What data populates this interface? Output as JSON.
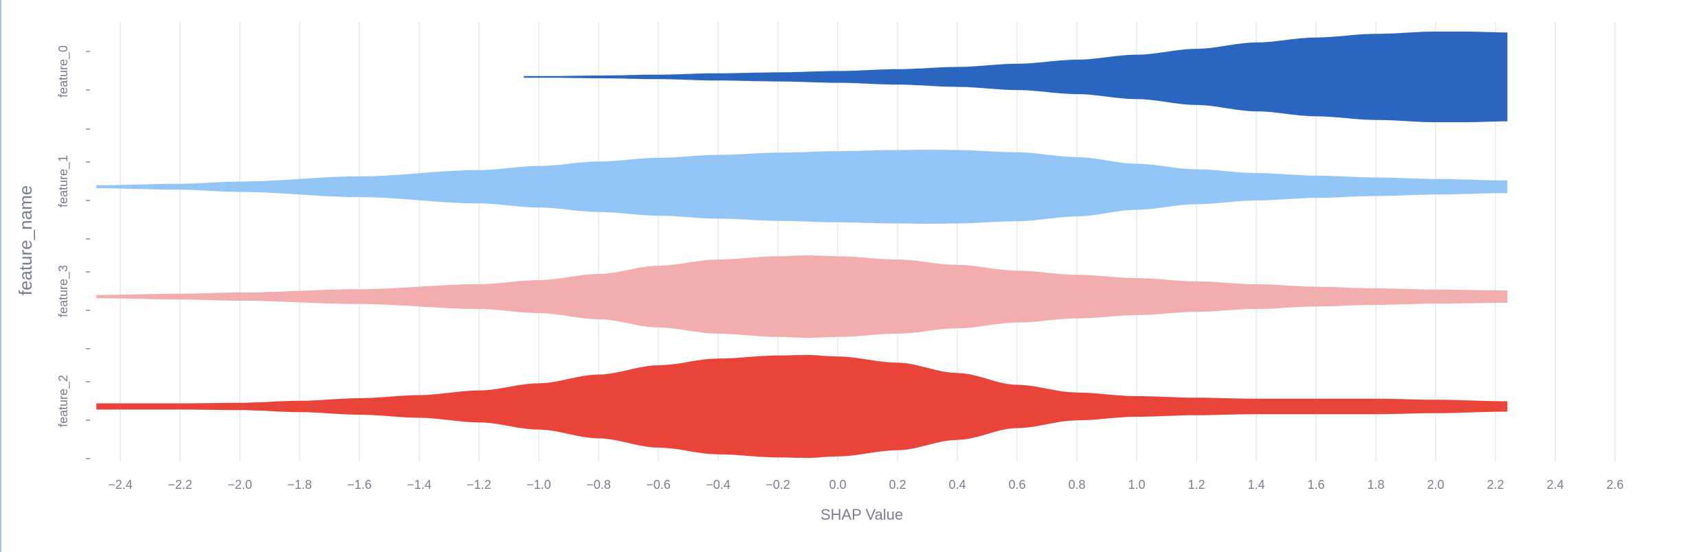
{
  "chart_data": {
    "type": "violin",
    "title": "",
    "xlabel": "SHAP Value",
    "ylabel": "feature_name",
    "xlim": [
      -2.5,
      2.65
    ],
    "x_ticks": [
      -2.4,
      -2.2,
      -2.0,
      -1.8,
      -1.6,
      -1.4,
      -1.2,
      -1.0,
      -0.8,
      -0.6,
      -0.4,
      -0.2,
      0.0,
      0.2,
      0.4,
      0.6,
      0.8,
      1.0,
      1.2,
      1.4,
      1.6,
      1.8,
      2.0,
      2.2,
      2.4,
      2.6
    ],
    "x_tick_labels": [
      "−2.4",
      "−2.2",
      "−2.0",
      "−1.8",
      "−1.6",
      "−1.4",
      "−1.2",
      "−1.0",
      "−0.8",
      "−0.6",
      "−0.4",
      "−0.2",
      "0.0",
      "0.2",
      "0.4",
      "0.6",
      "0.8",
      "1.0",
      "1.2",
      "1.4",
      "1.6",
      "1.8",
      "2.0",
      "2.2",
      "2.4",
      "2.6"
    ],
    "grid": "vertical",
    "legend": "none",
    "series": [
      {
        "name": "feature_0",
        "color": "#2a66c0",
        "x": [
          -1.05,
          -0.8,
          -0.6,
          -0.4,
          -0.2,
          0.0,
          0.2,
          0.4,
          0.6,
          0.8,
          1.0,
          1.2,
          1.4,
          1.6,
          1.8,
          2.0,
          2.1,
          2.24
        ],
        "density": [
          0.01,
          0.03,
          0.05,
          0.08,
          0.1,
          0.13,
          0.17,
          0.22,
          0.29,
          0.38,
          0.49,
          0.62,
          0.76,
          0.87,
          0.95,
          1.0,
          1.0,
          0.98
        ]
      },
      {
        "name": "feature_1",
        "color": "#93c5f6",
        "x": [
          -2.48,
          -2.2,
          -2.0,
          -1.6,
          -1.2,
          -1.0,
          -0.8,
          -0.6,
          -0.4,
          -0.2,
          0.0,
          0.2,
          0.3,
          0.4,
          0.6,
          0.8,
          1.0,
          1.2,
          1.4,
          1.6,
          1.8,
          2.0,
          2.24
        ],
        "density": [
          0.04,
          0.08,
          0.14,
          0.28,
          0.45,
          0.56,
          0.68,
          0.78,
          0.86,
          0.92,
          0.96,
          0.99,
          1.0,
          0.99,
          0.93,
          0.8,
          0.62,
          0.47,
          0.37,
          0.3,
          0.25,
          0.21,
          0.17
        ]
      },
      {
        "name": "feature_3",
        "color": "#f2aeae",
        "x": [
          -2.48,
          -2.2,
          -2.0,
          -1.6,
          -1.2,
          -1.0,
          -0.8,
          -0.6,
          -0.4,
          -0.2,
          -0.1,
          0.0,
          0.2,
          0.4,
          0.6,
          0.8,
          1.0,
          1.2,
          1.4,
          1.6,
          1.8,
          2.0,
          2.24
        ],
        "density": [
          0.04,
          0.07,
          0.1,
          0.18,
          0.3,
          0.4,
          0.55,
          0.75,
          0.9,
          0.98,
          1.0,
          0.98,
          0.9,
          0.77,
          0.63,
          0.53,
          0.45,
          0.37,
          0.3,
          0.24,
          0.2,
          0.17,
          0.15
        ]
      },
      {
        "name": "feature_2",
        "color": "#e8443a",
        "x": [
          -2.48,
          -2.2,
          -2.0,
          -1.8,
          -1.6,
          -1.4,
          -1.2,
          -1.0,
          -0.8,
          -0.6,
          -0.4,
          -0.2,
          -0.1,
          0.0,
          0.2,
          0.4,
          0.6,
          0.8,
          1.0,
          1.2,
          1.4,
          1.6,
          1.8,
          2.0,
          2.24
        ],
        "density": [
          0.06,
          0.06,
          0.07,
          0.11,
          0.16,
          0.22,
          0.31,
          0.45,
          0.62,
          0.8,
          0.93,
          0.99,
          1.0,
          0.97,
          0.85,
          0.65,
          0.42,
          0.27,
          0.2,
          0.17,
          0.15,
          0.15,
          0.15,
          0.13,
          0.1
        ]
      }
    ]
  }
}
